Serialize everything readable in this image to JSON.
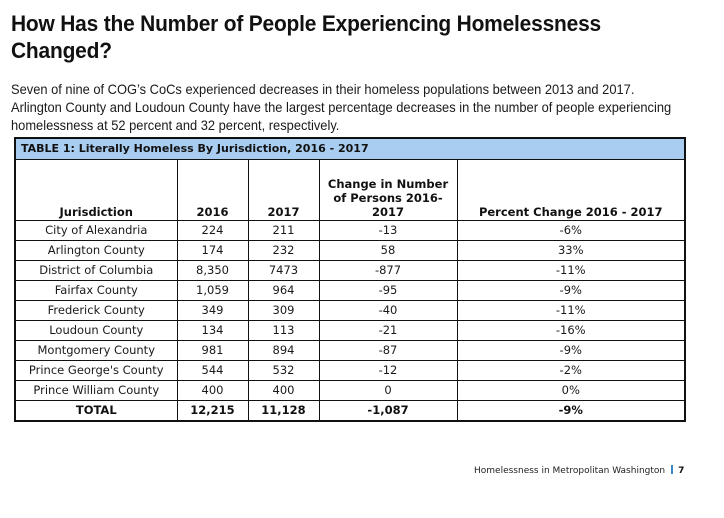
{
  "document": {
    "heading": "How Has the Number of People Experiencing Homelessness Changed?",
    "intro": "Seven of nine of COG’s CoCs experienced decreases in their homeless populations between 2013 and 2017. Arlington County and Loudoun County have the largest percentage decreases in the number of people experiencing homelessness at 52 percent and 32 percent, respectively."
  },
  "table": {
    "caption": "TABLE 1: Literally Homeless By Jurisdiction, 2016 - 2017",
    "caption_bg": "#a9cdf0",
    "columns": [
      "Jurisdiction",
      "2016",
      "2017",
      "Change in Number of Persons 2016-2017",
      "Percent Change 2016 - 2017"
    ],
    "rows": [
      [
        "City of Alexandria",
        "224",
        "211",
        "-13",
        "-6%"
      ],
      [
        "Arlington County",
        "174",
        "232",
        "58",
        "33%"
      ],
      [
        "District of Columbia",
        "8,350",
        "7473",
        "-877",
        "-11%"
      ],
      [
        "Fairfax County",
        "1,059",
        "964",
        "-95",
        "-9%"
      ],
      [
        "Frederick County",
        "349",
        "309",
        "-40",
        "-11%"
      ],
      [
        "Loudoun County",
        "134",
        "113",
        "-21",
        "-16%"
      ],
      [
        "Montgomery County",
        "981",
        "894",
        "-87",
        "-9%"
      ],
      [
        "Prince George's County",
        "544",
        "532",
        "-12",
        "-2%"
      ],
      [
        "Prince William County",
        "400",
        "400",
        "0",
        "0%"
      ]
    ],
    "total": [
      "TOTAL",
      "12,215",
      "11,128",
      "-1,087",
      "-9%"
    ]
  },
  "footer": {
    "publication": "Homelessness in Metropolitan Washington",
    "page_number": "7",
    "separator_color": "#3b86c8"
  }
}
